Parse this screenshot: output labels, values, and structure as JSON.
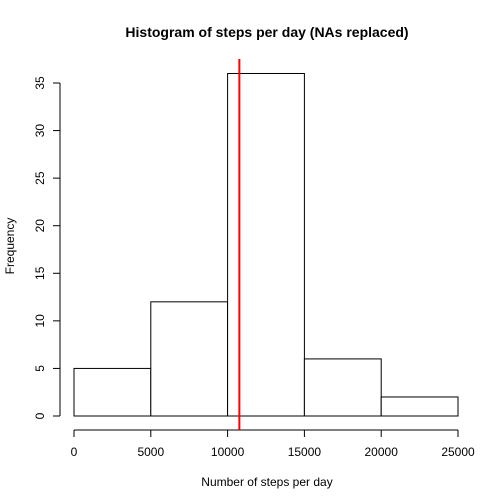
{
  "chart_data": {
    "type": "histogram",
    "title": "Histogram of steps per day (NAs replaced)",
    "xlabel": "Number of steps per day",
    "ylabel": "Frequency",
    "bins": [
      {
        "start": 0,
        "end": 5000,
        "count": 5
      },
      {
        "start": 5000,
        "end": 10000,
        "count": 12
      },
      {
        "start": 10000,
        "end": 15000,
        "count": 36
      },
      {
        "start": 15000,
        "end": 20000,
        "count": 6
      },
      {
        "start": 20000,
        "end": 25000,
        "count": 2
      }
    ],
    "xlim": [
      0,
      25000
    ],
    "ylim": [
      0,
      37
    ],
    "x_ticks": [
      0,
      5000,
      10000,
      15000,
      20000,
      25000
    ],
    "y_ticks": [
      0,
      5,
      10,
      15,
      20,
      25,
      30,
      35
    ],
    "reference_line": {
      "x": 10766,
      "color": "#ff0000"
    },
    "bar_fill": "#ffffff",
    "bar_stroke": "#000000",
    "grid": false,
    "legend": "none"
  }
}
